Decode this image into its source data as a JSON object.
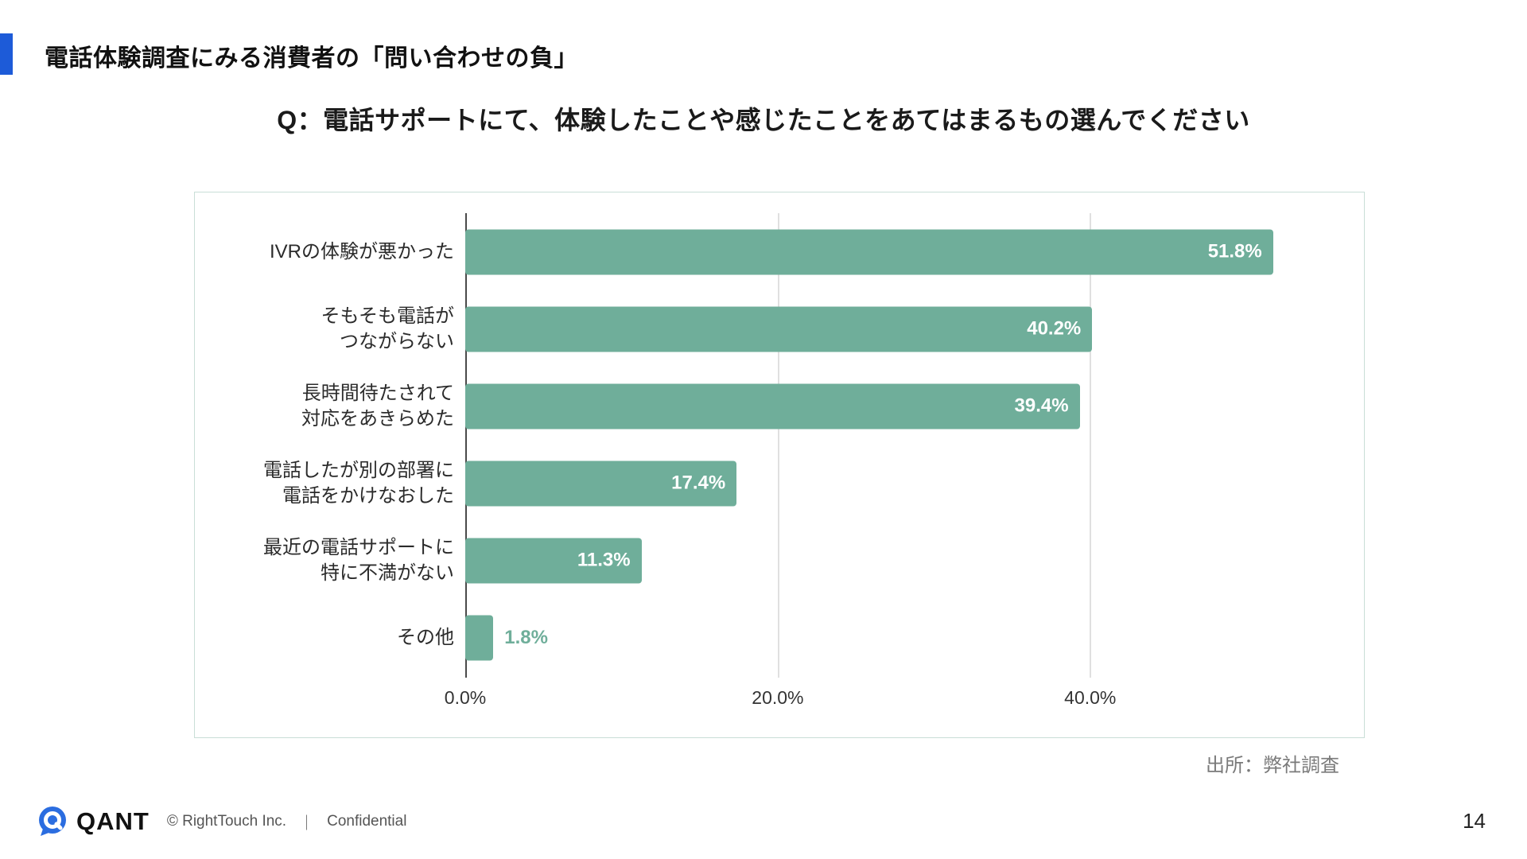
{
  "slide": {
    "header_title": "電話体験調査にみる消費者の「問い合わせの負」",
    "question_title": "Q：電話サポートにて、体験したことや感じたことをあてはまるもの選んでください",
    "source_note": "出所：弊社調査",
    "page_number": "14"
  },
  "footer": {
    "logo_text": "QANT",
    "copyright": "© RightTouch Inc.",
    "separator": "｜",
    "confidential": "Confidential"
  },
  "colors": {
    "accent_blue": "#1d5bd8",
    "logo_blue": "#2b6de0",
    "bar_green": "#6fae9a",
    "chart_border": "#c9ded7"
  },
  "chart_data": {
    "type": "bar",
    "orientation": "horizontal",
    "title": "",
    "xlabel": "",
    "ylabel": "",
    "grid": true,
    "legend": false,
    "categories": [
      [
        "IVRの体験が悪かった"
      ],
      [
        "そもそも電話が",
        "つながらない"
      ],
      [
        "長時間待たされて",
        "対応をあきらめた"
      ],
      [
        "電話したが別の部署に",
        "電話をかけなおした"
      ],
      [
        "最近の電話サポートに",
        "特に不満がない"
      ],
      [
        "その他"
      ]
    ],
    "values": [
      51.8,
      40.2,
      39.4,
      17.4,
      11.3,
      1.8
    ],
    "value_labels": [
      "51.8%",
      "40.2%",
      "39.4%",
      "17.4%",
      "11.3%",
      "1.8%"
    ],
    "label_positions": [
      "inside",
      "inside",
      "inside",
      "inside",
      "inside",
      "outside"
    ],
    "x_ticks": [
      0,
      20,
      40
    ],
    "x_tick_labels": [
      "0.0%",
      "20.0%",
      "40.0%"
    ],
    "xlim": [
      0,
      56.3
    ],
    "bar_color": "#6fae9a",
    "label_inside_color": "#ffffff",
    "label_outside_color": "#6fae9a"
  }
}
